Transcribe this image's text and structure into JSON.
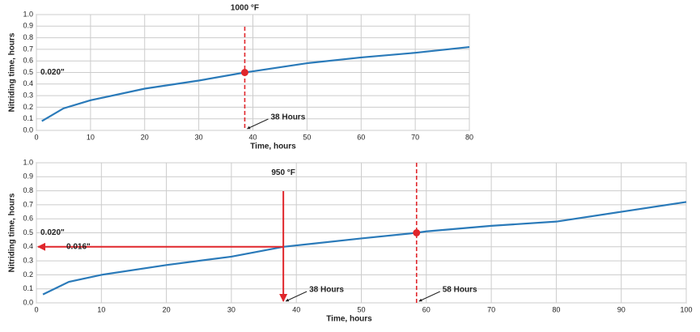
{
  "chart_data": [
    {
      "type": "line",
      "x_label": "Time, hours",
      "y_label": "Nitriding time, hours",
      "x": [
        1,
        5,
        10,
        20,
        30,
        38.5,
        40,
        50,
        60,
        70,
        80
      ],
      "series": [
        {
          "color": "#2a7ab9",
          "values": [
            0.08,
            0.19,
            0.26,
            0.36,
            0.43,
            0.5,
            0.51,
            0.58,
            0.63,
            0.67,
            0.72
          ]
        }
      ],
      "xlim": [
        0,
        80
      ],
      "xticks": [
        0,
        10,
        20,
        30,
        40,
        50,
        60,
        70,
        80
      ],
      "ylim": [
        0,
        1
      ],
      "yticks": [
        {
          "value": 0,
          "label": "0.0"
        },
        0.1,
        0.2,
        0.3,
        0.4,
        0.5,
        0.6,
        0.7,
        0.8,
        0.9,
        {
          "value": 1,
          "label": "1.0"
        }
      ],
      "grid": true,
      "marker_color": "#e0262b",
      "marker": {
        "x": 38.5,
        "y": 0.5
      },
      "annotations": [
        "1000 °F",
        "38 Hours",
        "0.020\""
      ]
    },
    {
      "type": "line",
      "x_label": "Time, hours",
      "y_label": "Nitriding time, hours",
      "x": [
        1,
        5,
        10,
        20,
        30,
        38,
        40,
        50,
        58.5,
        60,
        70,
        80,
        90,
        100
      ],
      "series": [
        {
          "color": "#2a7ab9",
          "values": [
            0.06,
            0.15,
            0.2,
            0.27,
            0.33,
            0.4,
            0.41,
            0.46,
            0.5,
            0.51,
            0.55,
            0.58,
            0.65,
            0.72
          ]
        }
      ],
      "xlim": [
        0,
        100
      ],
      "xticks": [
        0,
        10,
        20,
        30,
        40,
        50,
        60,
        70,
        80,
        90,
        100
      ],
      "ylim": [
        0,
        1
      ],
      "yticks": [
        {
          "value": 0,
          "label": "0.0"
        },
        0.1,
        0.2,
        0.3,
        0.4,
        0.5,
        0.6,
        0.7,
        0.8,
        0.9,
        {
          "value": 1,
          "label": "1.0"
        }
      ],
      "grid": true,
      "marker_color": "#e0262b",
      "marker": {
        "x": 58.5,
        "y": 0.5
      },
      "arrow": {
        "x": 38,
        "y": 0.4
      },
      "annotations": [
        "950 °F",
        "38 Hours",
        "58 Hours",
        "0.020\"",
        "0.016\""
      ]
    }
  ]
}
